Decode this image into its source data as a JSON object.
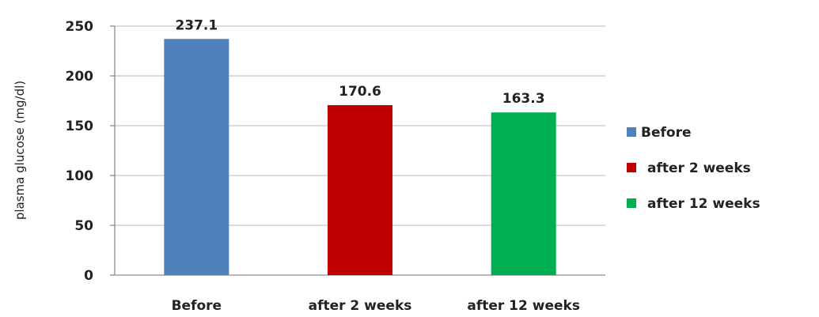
{
  "chart_data": {
    "type": "bar",
    "title": "",
    "xlabel": "",
    "ylabel": "plasma glucose (mg/dl)",
    "categories": [
      "Before",
      "after 2 weeks",
      "after 12 weeks"
    ],
    "values": [
      237.1,
      170.6,
      163.3
    ],
    "data_labels": [
      "237.1",
      "170.6",
      "163.3"
    ],
    "colors": [
      "#4f81bd",
      "#c00000",
      "#00b050"
    ],
    "ylim": [
      0,
      250
    ],
    "yticks": [
      0,
      50,
      100,
      150,
      200,
      250
    ],
    "ytick_labels": [
      "0",
      "50",
      "100",
      "150",
      "200",
      "250"
    ],
    "grid": true,
    "legend": {
      "placement": "right",
      "entries": [
        "Before",
        "after 2 weeks",
        "after 12 weeks"
      ]
    }
  }
}
